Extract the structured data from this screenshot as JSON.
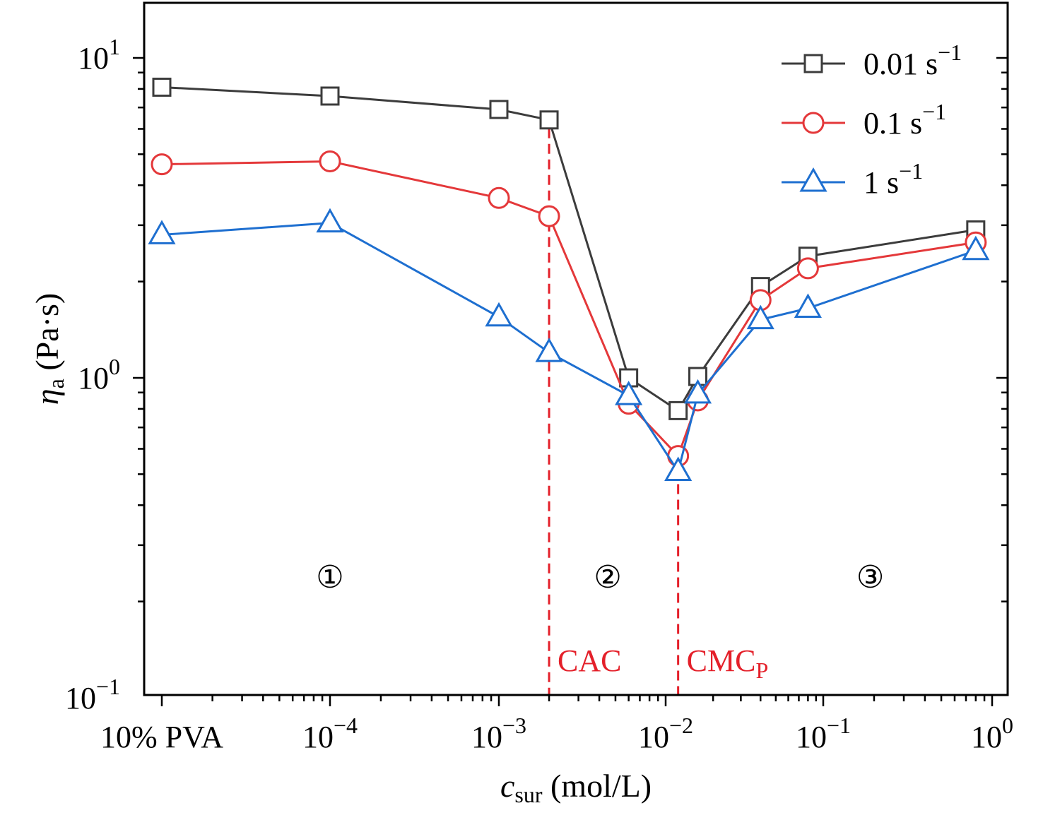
{
  "chart_data": {
    "type": "line",
    "xlabel": {
      "var": "c",
      "sub": "sur",
      "rest": " (mol/L)"
    },
    "ylabel": {
      "var": "η",
      "sub": "a",
      "rest": " (Pa·s)"
    },
    "x_scale": "log",
    "y_scale": "log",
    "xlim": [
      1.3e-05,
      1.1
    ],
    "ylim": [
      0.1,
      16
    ],
    "x_ticks": [
      {
        "value": 1e-05,
        "text": "10% PVA"
      },
      {
        "value": 0.0001,
        "base": "10",
        "exp": "−4"
      },
      {
        "value": 0.001,
        "base": "10",
        "exp": "−3"
      },
      {
        "value": 0.01,
        "base": "10",
        "exp": "−2"
      },
      {
        "value": 0.1,
        "base": "10",
        "exp": "−1"
      },
      {
        "value": 1,
        "base": "10",
        "exp": "0"
      }
    ],
    "y_ticks": [
      {
        "value": 0.1,
        "base": "10",
        "exp": "−1"
      },
      {
        "value": 1,
        "base": "10",
        "exp": "0"
      },
      {
        "value": 10,
        "base": "10",
        "exp": "1"
      }
    ],
    "series": [
      {
        "name": "0.01 s",
        "name_sup": "−1",
        "color": "#3c3c3c",
        "marker": "square",
        "x": [
          1e-05,
          0.0001,
          0.001,
          0.002,
          0.006,
          0.012,
          0.016,
          0.04,
          0.08,
          0.8
        ],
        "y": [
          8.1,
          7.6,
          6.9,
          6.4,
          1.0,
          0.79,
          1.01,
          1.93,
          2.4,
          2.9
        ]
      },
      {
        "name": "0.1 s",
        "name_sup": "−1",
        "color": "#e4383a",
        "marker": "circle",
        "x": [
          1e-05,
          0.0001,
          0.001,
          0.002,
          0.006,
          0.012,
          0.016,
          0.04,
          0.08,
          0.8
        ],
        "y": [
          4.65,
          4.75,
          3.65,
          3.2,
          0.83,
          0.57,
          0.85,
          1.75,
          2.2,
          2.65
        ]
      },
      {
        "name": "1 s",
        "name_sup": "−1",
        "color": "#1e6fd0",
        "marker": "triangle",
        "x": [
          1e-05,
          0.0001,
          0.001,
          0.002,
          0.006,
          0.012,
          0.016,
          0.04,
          0.08,
          0.8
        ],
        "y": [
          2.8,
          3.05,
          1.55,
          1.2,
          0.88,
          0.51,
          0.89,
          1.52,
          1.65,
          2.5
        ]
      }
    ],
    "vlines": [
      {
        "x": 0.002,
        "label": "CAC",
        "color": "#e4202a"
      },
      {
        "x": 0.012,
        "label": "CMC",
        "label_sub": "P",
        "color": "#e4202a"
      }
    ],
    "zones": [
      {
        "label": "①",
        "x": 0.0001
      },
      {
        "label": "②",
        "x": 0.0045
      },
      {
        "label": "③",
        "x": 0.19
      }
    ],
    "legend_position": "top-right",
    "grid": false
  }
}
